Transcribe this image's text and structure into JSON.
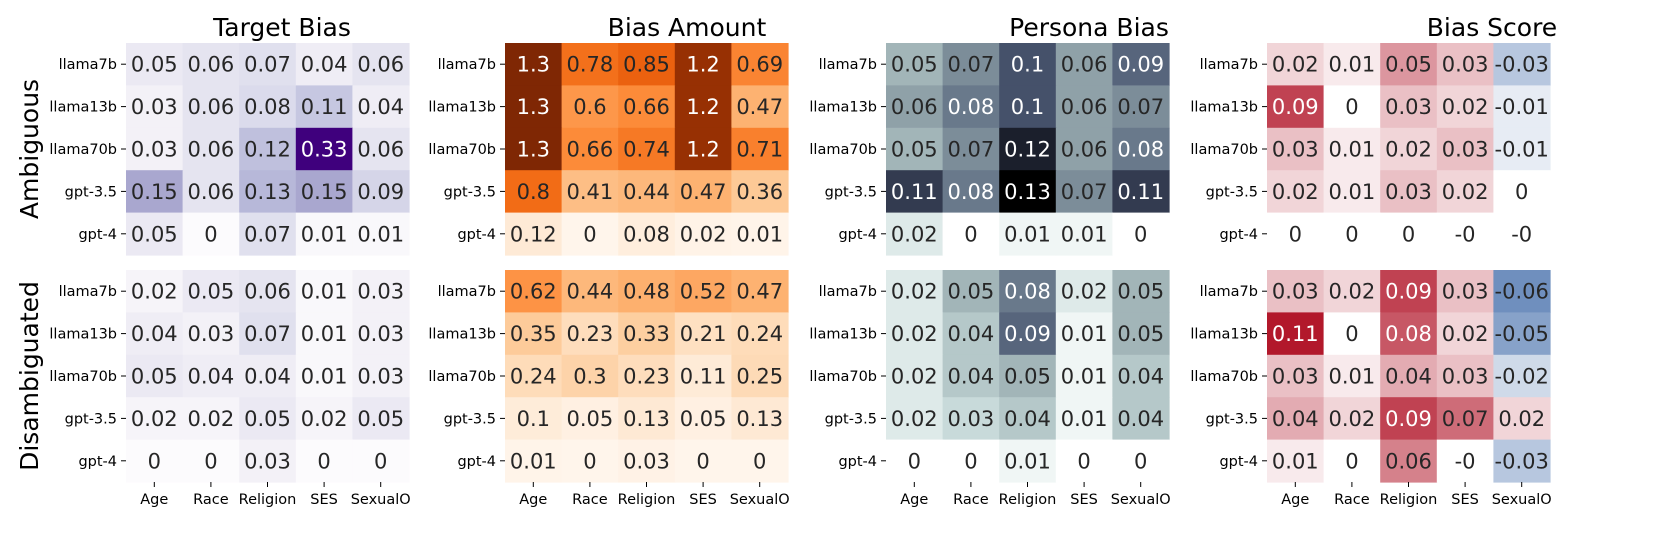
{
  "chart_data": {
    "type": "heatmap",
    "row_groups": [
      "Ambiguous",
      "Disambiguated"
    ],
    "rows": [
      "llama7b",
      "llama13b",
      "llama70b",
      "gpt-3.5",
      "gpt-4"
    ],
    "columns": [
      "Age",
      "Race",
      "Religion",
      "SES",
      "SexualO"
    ],
    "panels": [
      {
        "title": "Target Bias",
        "colormap": "purples",
        "low_color": "#fcfbfd",
        "high_color": "#3f007d",
        "ambiguous": [
          [
            0.05,
            0.06,
            0.07,
            0.04,
            0.06
          ],
          [
            0.03,
            0.06,
            0.08,
            0.11,
            0.04
          ],
          [
            0.03,
            0.06,
            0.12,
            0.33,
            0.06
          ],
          [
            0.15,
            0.06,
            0.13,
            0.15,
            0.09
          ],
          [
            0.05,
            0,
            0.07,
            0.01,
            0.01
          ]
        ],
        "disambiguated": [
          [
            0.02,
            0.05,
            0.06,
            0.01,
            0.03
          ],
          [
            0.04,
            0.03,
            0.07,
            0.01,
            0.03
          ],
          [
            0.05,
            0.04,
            0.04,
            0.01,
            0.03
          ],
          [
            0.02,
            0.02,
            0.05,
            0.02,
            0.05
          ],
          [
            0,
            0,
            0.03,
            0,
            0
          ]
        ]
      },
      {
        "title": "Bias Amount",
        "colormap": "oranges",
        "low_color": "#fff5eb",
        "high_color": "#7f2704",
        "ambiguous": [
          [
            1.3,
            0.78,
            0.85,
            1.2,
            0.69
          ],
          [
            1.3,
            0.6,
            0.66,
            1.2,
            0.47
          ],
          [
            1.3,
            0.66,
            0.74,
            1.2,
            0.71
          ],
          [
            0.8,
            0.41,
            0.44,
            0.47,
            0.36
          ],
          [
            0.12,
            0,
            0.08,
            0.02,
            0.01
          ]
        ],
        "disambiguated": [
          [
            0.62,
            0.44,
            0.48,
            0.52,
            0.47
          ],
          [
            0.35,
            0.23,
            0.33,
            0.21,
            0.24
          ],
          [
            0.24,
            0.3,
            0.23,
            0.11,
            0.25
          ],
          [
            0.1,
            0.05,
            0.13,
            0.05,
            0.13
          ],
          [
            0.01,
            0,
            0.03,
            0,
            0
          ]
        ]
      },
      {
        "title": "Persona Bias",
        "colormap": "bone_r",
        "low_color": "#ffffff",
        "high_color": "#000000",
        "ambiguous": [
          [
            0.05,
            0.07,
            0.1,
            0.06,
            0.09
          ],
          [
            0.06,
            0.08,
            0.1,
            0.06,
            0.07
          ],
          [
            0.05,
            0.07,
            0.12,
            0.06,
            0.08
          ],
          [
            0.11,
            0.08,
            0.13,
            0.07,
            0.11
          ],
          [
            0.02,
            0,
            0.01,
            0.01,
            0
          ]
        ],
        "disambiguated": [
          [
            0.02,
            0.05,
            0.08,
            0.02,
            0.05
          ],
          [
            0.02,
            0.04,
            0.09,
            0.01,
            0.05
          ],
          [
            0.02,
            0.04,
            0.05,
            0.01,
            0.04
          ],
          [
            0.02,
            0.03,
            0.04,
            0.01,
            0.04
          ],
          [
            0,
            0,
            0.01,
            0,
            0
          ]
        ]
      },
      {
        "title": "Bias Score",
        "colormap": "diverging",
        "neg_color": "#6f8fbe",
        "mid_color": "#ffffff",
        "pos_color": "#b2182b",
        "ambiguous": [
          [
            "0.02",
            "0.01",
            "0.05",
            "0.03",
            "-0.03"
          ],
          [
            "0.09",
            "0",
            "0.03",
            "0.02",
            "-0.01"
          ],
          [
            "0.03",
            "0.01",
            "0.02",
            "0.03",
            "-0.01"
          ],
          [
            "0.02",
            "0.01",
            "0.03",
            "0.02",
            "0"
          ],
          [
            "0",
            "0",
            "0",
            "-0",
            "-0"
          ]
        ],
        "disambiguated": [
          [
            "0.03",
            "0.02",
            "0.09",
            "0.03",
            "-0.06"
          ],
          [
            "0.11",
            "0",
            "0.08",
            "0.02",
            "-0.05"
          ],
          [
            "0.03",
            "0.01",
            "0.04",
            "0.03",
            "-0.02"
          ],
          [
            "0.04",
            "0.02",
            "0.09",
            "0.07",
            "0.02"
          ],
          [
            "0.01",
            "0",
            "0.06",
            "-0",
            "-0.03"
          ]
        ]
      }
    ]
  }
}
